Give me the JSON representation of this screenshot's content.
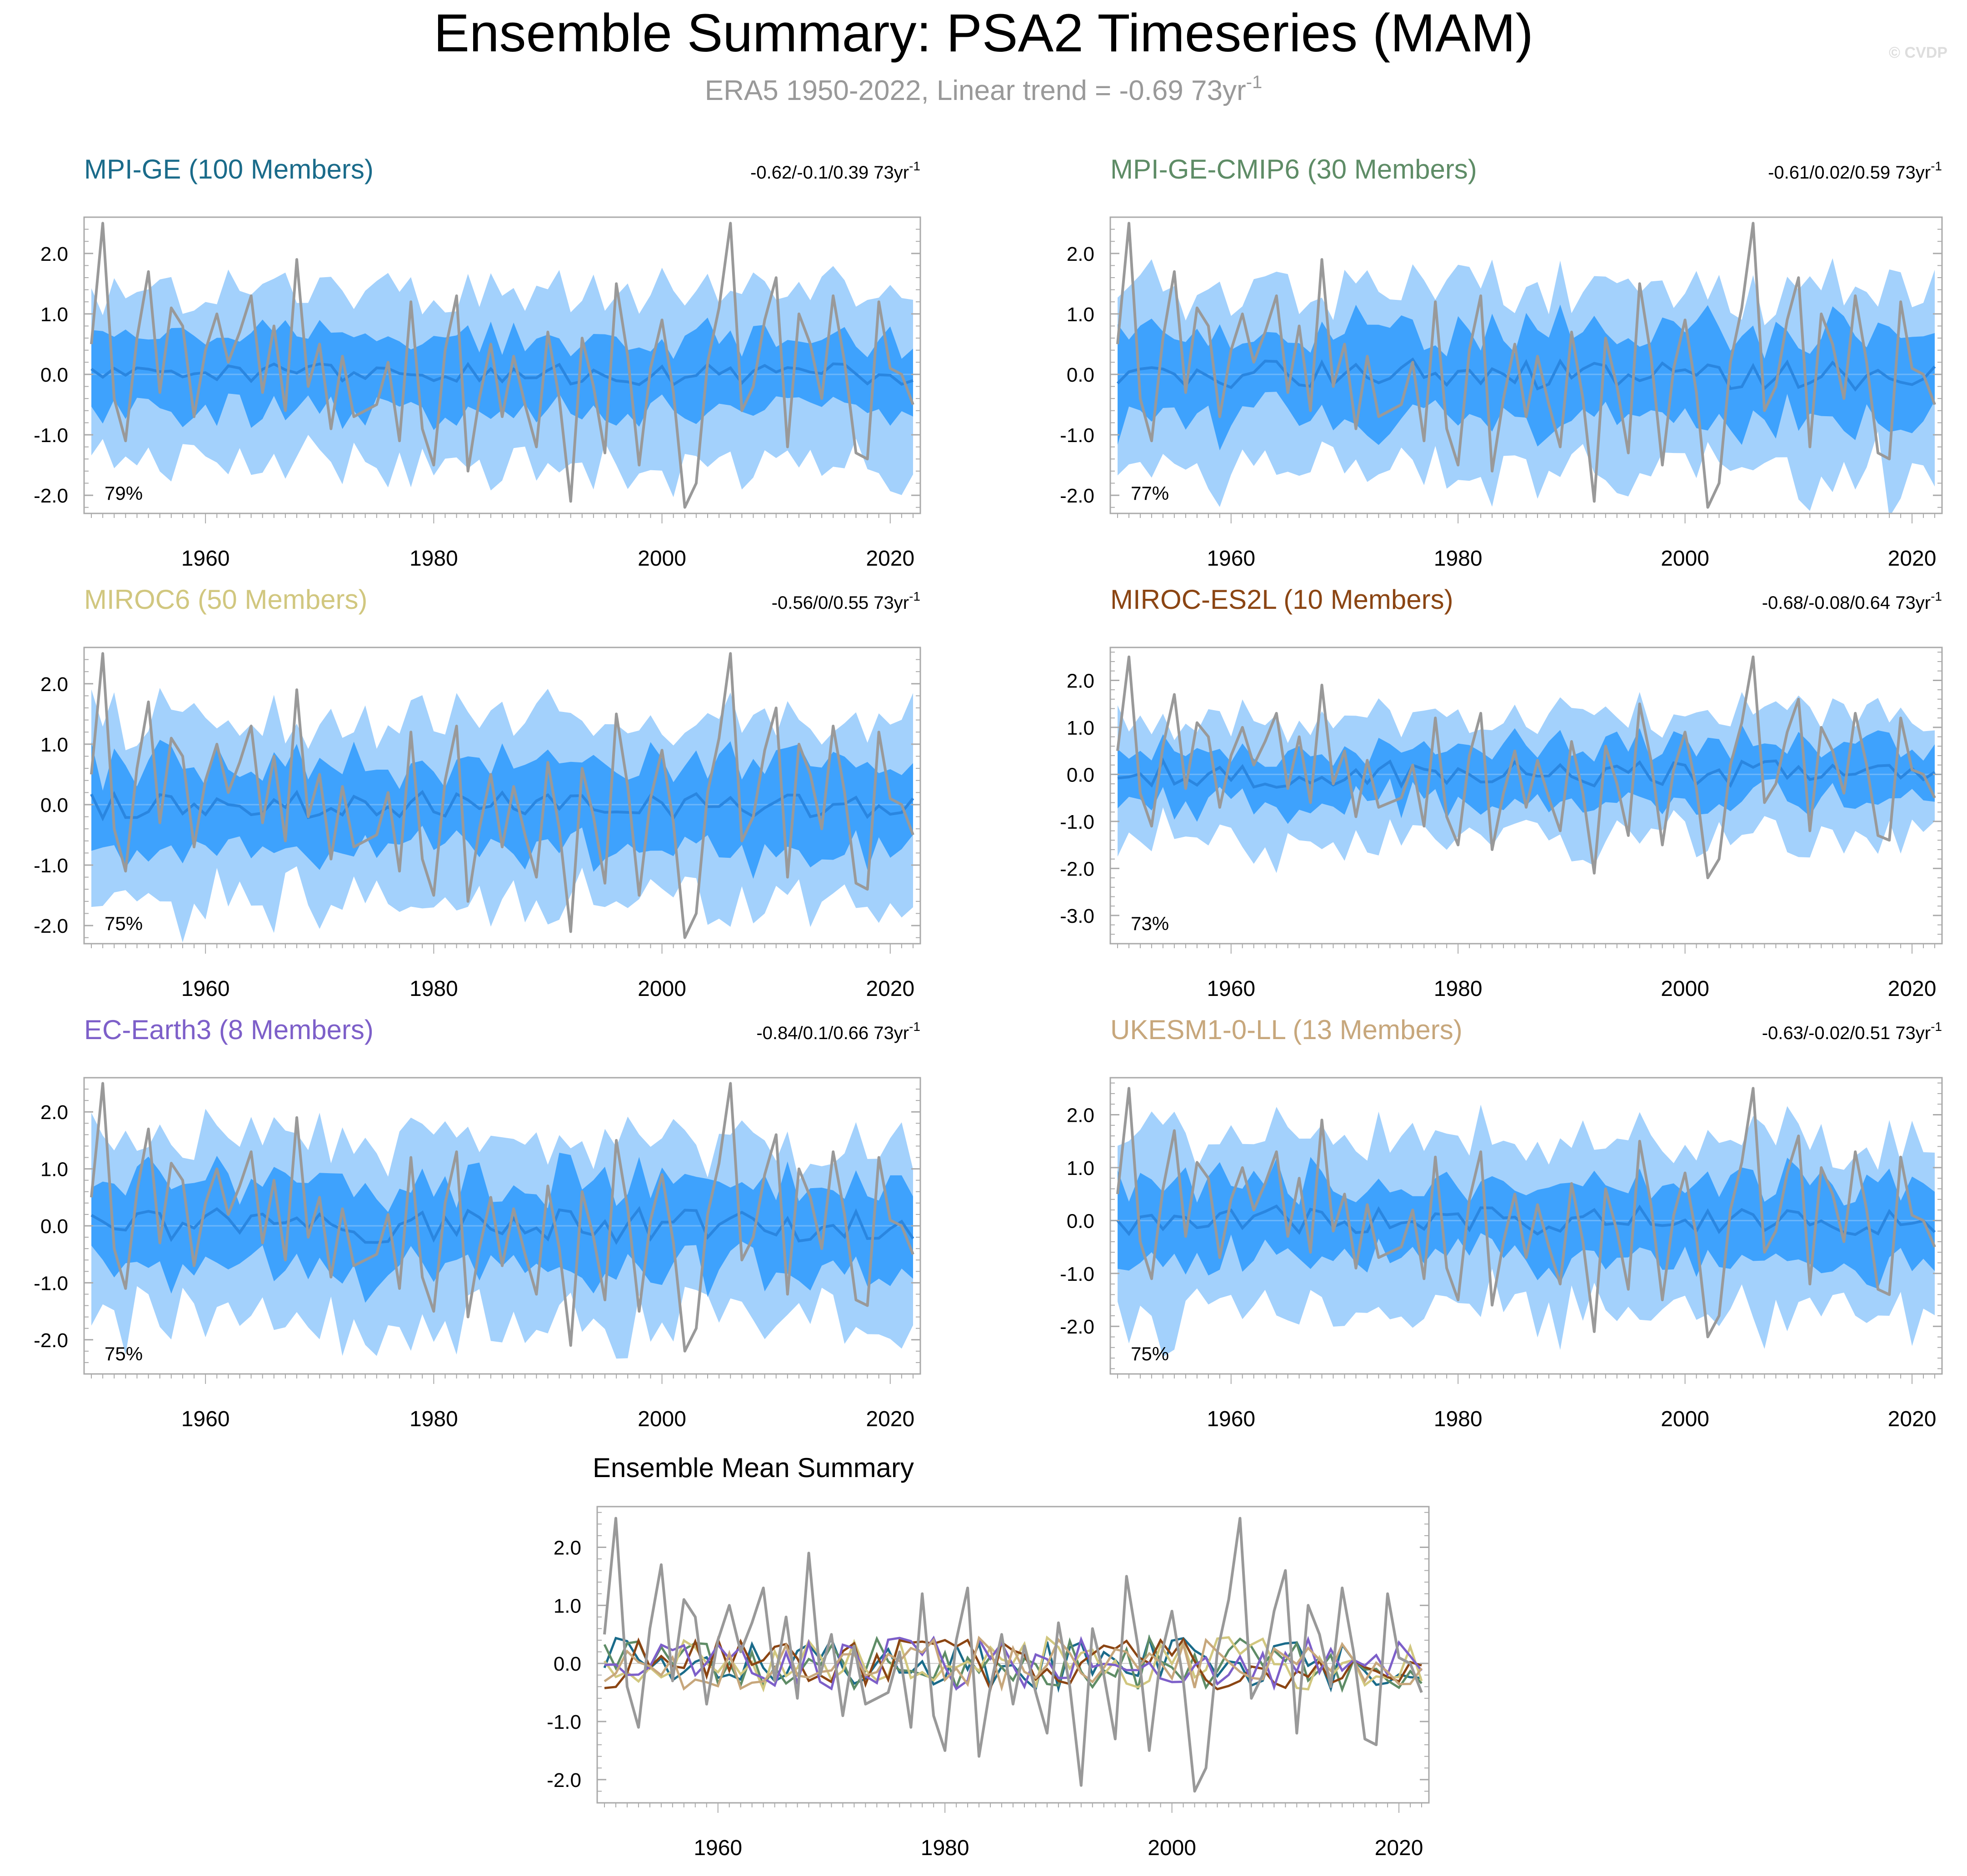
{
  "title": "Ensemble Summary: PSA2 Timeseries (MAM)",
  "subtitle_prefix": "ERA5 1950-2022, Linear trend = -0.69 73yr",
  "subtitle_exp": "-1",
  "watermark": "© CVDP",
  "colors": {
    "obs": "#999999",
    "band_outer": "#a3d1fc",
    "band_inner": "#3ea2fd",
    "mean_line": "#2a86e0",
    "zero_line": "#6cb6fb"
  },
  "chart_data": [
    {
      "type": "line",
      "id": "mpi-ge",
      "title": "MPI-GE (100 Members)",
      "title_color": "#1a6b8a",
      "trend": "-0.62/-0.1/0.39 73yr",
      "trend_exp": "-1",
      "pct": "79%",
      "ylim": [
        -2.3,
        2.6
      ],
      "ymin_tick": -2,
      "seed": 11,
      "amp_inner": 0.55,
      "amp_outer": 1.25,
      "var": 0.35,
      "xlabels": [
        "1960",
        "1980",
        "2000",
        "2020"
      ],
      "yticks": [
        "2.0",
        "1.0",
        "0.0",
        "-1.0",
        "-2.0"
      ]
    },
    {
      "type": "line",
      "id": "mpi-ge-cmip6",
      "title": "MPI-GE-CMIP6 (30 Members)",
      "title_color": "#5e8c66",
      "trend": "-0.61/0.02/0.59 73yr",
      "trend_exp": "-1",
      "pct": "77%",
      "ylim": [
        -2.3,
        2.6
      ],
      "ymin_tick": -2,
      "seed": 23,
      "amp_inner": 0.6,
      "amp_outer": 1.3,
      "var": 0.5,
      "xlabels": [
        "1960",
        "1980",
        "2000",
        "2020"
      ],
      "yticks": [
        "2.0",
        "1.0",
        "0.0",
        "-1.0",
        "-2.0"
      ]
    },
    {
      "type": "line",
      "id": "miroc6",
      "title": "MIROC6 (50 Members)",
      "title_color": "#d1c77f",
      "trend": "-0.56/0/0.55 73yr",
      "trend_exp": "-1",
      "pct": "75%",
      "ylim": [
        -2.3,
        2.6
      ],
      "ymin_tick": -2,
      "seed": 37,
      "amp_inner": 0.6,
      "amp_outer": 1.3,
      "var": 0.45,
      "xlabels": [
        "1960",
        "1980",
        "2000",
        "2020"
      ],
      "yticks": [
        "2.0",
        "1.0",
        "0.0",
        "-1.0",
        "-2.0"
      ]
    },
    {
      "type": "line",
      "id": "miroc-es2l",
      "title": "MIROC-ES2L (10 Members)",
      "title_color": "#8b4513",
      "trend": "-0.68/-0.08/0.64 73yr",
      "trend_exp": "-1",
      "pct": "73%",
      "ylim": [
        -3.6,
        2.7
      ],
      "ymin_tick": -3,
      "seed": 41,
      "amp_inner": 0.45,
      "amp_outer": 1.1,
      "var": 0.6,
      "xlabels": [
        "1960",
        "1980",
        "2000",
        "2020"
      ],
      "yticks": [
        "2.0",
        "1.0",
        "0.0",
        "-1.0",
        "-2.0",
        "-3.0"
      ]
    },
    {
      "type": "line",
      "id": "ec-earth3",
      "title": "EC-Earth3 (8 Members)",
      "title_color": "#7d5fc9",
      "trend": "-0.84/0.1/0.66 73yr",
      "trend_exp": "-1",
      "pct": "75%",
      "ylim": [
        -2.6,
        2.6
      ],
      "ymin_tick": -2,
      "seed": 53,
      "amp_inner": 0.6,
      "amp_outer": 1.3,
      "var": 0.6,
      "xlabels": [
        "1960",
        "1980",
        "2000",
        "2020"
      ],
      "yticks": [
        "2.0",
        "1.0",
        "0.0",
        "-1.0",
        "-2.0"
      ]
    },
    {
      "type": "line",
      "id": "ukesm1-0-ll",
      "title": "UKESM1-0-LL (13 Members)",
      "title_color": "#c7a77c",
      "trend": "-0.63/-0.02/0.51 73yr",
      "trend_exp": "-1",
      "pct": "75%",
      "ylim": [
        -2.9,
        2.7
      ],
      "ymin_tick": -2,
      "seed": 67,
      "amp_inner": 0.6,
      "amp_outer": 1.4,
      "var": 0.55,
      "xlabels": [
        "1960",
        "1980",
        "2000",
        "2020"
      ],
      "yticks": [
        "2.0",
        "1.0",
        "0.0",
        "-1.0",
        "-2.0"
      ]
    },
    {
      "type": "line",
      "id": "ensemble-mean",
      "title": "Ensemble Mean Summary",
      "ylim": [
        -2.4,
        2.7
      ],
      "xlabels": [
        "1960",
        "1980",
        "2000",
        "2020"
      ],
      "yticks": [
        "2.0",
        "1.0",
        "0.0",
        "-1.0",
        "-2.0"
      ],
      "series": [
        {
          "name": "MPI-GE",
          "color": "#1a6b8a",
          "seed": 11
        },
        {
          "name": "MPI-GE-CMIP6",
          "color": "#5e8c66",
          "seed": 23
        },
        {
          "name": "MIROC6",
          "color": "#d1c77f",
          "seed": 37
        },
        {
          "name": "MIROC-ES2L",
          "color": "#8b4513",
          "seed": 41
        },
        {
          "name": "EC-Earth3",
          "color": "#7d5fc9",
          "seed": 53
        },
        {
          "name": "UKESM1-0-LL",
          "color": "#c7a77c",
          "seed": 67
        }
      ]
    }
  ],
  "obs_series": {
    "name": "ERA5",
    "start_year": 1950,
    "values": [
      0.5,
      2.5,
      -0.4,
      -1.1,
      0.6,
      1.7,
      -0.3,
      1.1,
      0.8,
      -0.7,
      0.4,
      1.0,
      0.2,
      0.7,
      1.3,
      -0.3,
      0.8,
      -0.6,
      1.9,
      -0.2,
      0.5,
      -0.9,
      0.3,
      -0.7,
      -0.6,
      -0.5,
      0.2,
      -1.1,
      1.2,
      -0.9,
      -1.5,
      0.4,
      1.3,
      -1.6,
      -0.4,
      0.5,
      -0.7,
      0.3,
      -0.5,
      -1.2,
      0.7,
      -0.4,
      -2.1,
      0.6,
      -0.2,
      -1.3,
      1.5,
      0.3,
      -1.5,
      0.1,
      0.9,
      -0.3,
      -2.2,
      -1.8,
      0.2,
      1.1,
      2.5,
      -0.6,
      -0.2,
      0.9,
      1.6,
      -1.2,
      1.0,
      0.5,
      -0.4,
      1.3,
      0.2,
      -1.3,
      -1.4,
      1.2,
      0.1,
      0.0,
      -0.5
    ]
  }
}
